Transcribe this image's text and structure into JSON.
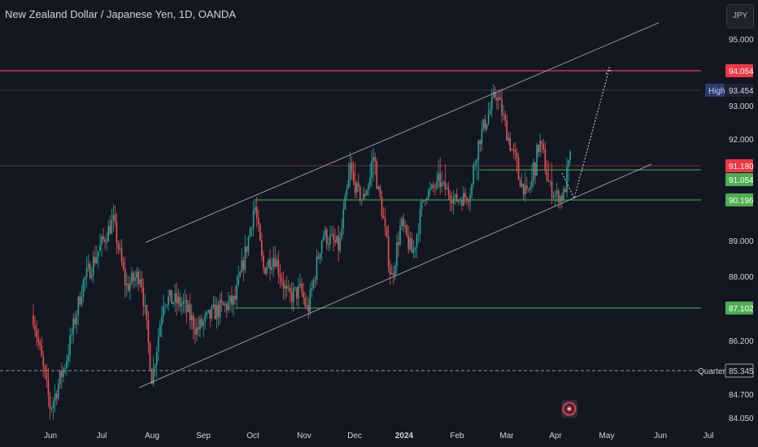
{
  "header": {
    "title": "New Zealand Dollar / Japanese Yen, 1D, OANDA"
  },
  "currency_button": {
    "label": "JPY"
  },
  "colors": {
    "background": "#131722",
    "up": "#26a69a",
    "down": "#ef5350",
    "red_level": "#f23645",
    "green_level": "#4caf50",
    "channel": "#b2b5be",
    "high_badge": "#2a3e73",
    "axis_text": "#d1d4dc"
  },
  "chart_data": {
    "type": "candlestick",
    "y_axis": {
      "ticks": [
        "95.000",
        "93.000",
        "92.000",
        "89.000",
        "88.000",
        "86.200",
        "84.700",
        "84.050"
      ]
    },
    "x_axis": {
      "labels": [
        "Jun",
        "Jul",
        "Aug",
        "Sep",
        "Oct",
        "Nov",
        "Dec",
        "2024",
        "Feb",
        "Mar",
        "Apr",
        "May",
        "Jun",
        "Jul"
      ]
    },
    "price_labels": [
      {
        "value": "94.054",
        "kind": "red"
      },
      {
        "value": "93.454",
        "kind": "high",
        "tag": "High"
      },
      {
        "value": "91.180",
        "kind": "red"
      },
      {
        "value": "91.054",
        "kind": "green"
      },
      {
        "value": "90.196",
        "kind": "green"
      },
      {
        "value": "87.102",
        "kind": "green"
      },
      {
        "value": "85.345",
        "kind": "neutral",
        "tag": "Quarter"
      }
    ],
    "annotations": {
      "horizontal_levels": [
        94.054,
        91.18,
        91.054,
        90.196,
        87.102,
        85.345
      ],
      "ascending_channel": {
        "upper": {
          "from": [
            "2023-08-01",
            88.95
          ],
          "to": [
            "2024-06-01",
            95.45
          ]
        },
        "lower": {
          "from": [
            "2023-08-01",
            84.95
          ],
          "to": [
            "2024-06-01",
            91.25
          ]
        }
      },
      "projection": [
        [
          "2024-04-12",
          90.2
        ],
        [
          "2024-05-01",
          94.05
        ]
      ]
    },
    "series_anchor_points": [
      [
        "2023-05-22",
        86.9
      ],
      [
        "2023-06-01",
        84.3
      ],
      [
        "2023-06-10",
        85.6
      ],
      [
        "2023-06-20",
        87.8
      ],
      [
        "2023-07-01",
        88.9
      ],
      [
        "2023-07-08",
        89.6
      ],
      [
        "2023-07-16",
        87.7
      ],
      [
        "2023-07-25",
        88.1
      ],
      [
        "2023-08-01",
        85.1
      ],
      [
        "2023-08-08",
        87.4
      ],
      [
        "2023-08-20",
        87.2
      ],
      [
        "2023-08-28",
        86.5
      ],
      [
        "2023-09-08",
        87.0
      ],
      [
        "2023-09-20",
        87.3
      ],
      [
        "2023-09-28",
        89.0
      ],
      [
        "2023-10-02",
        90.1
      ],
      [
        "2023-10-07",
        88.2
      ],
      [
        "2023-10-14",
        88.6
      ],
      [
        "2023-10-22",
        87.4
      ],
      [
        "2023-10-30",
        87.6
      ],
      [
        "2023-11-03",
        87.0
      ],
      [
        "2023-11-12",
        89.2
      ],
      [
        "2023-11-22",
        88.8
      ],
      [
        "2023-11-28",
        91.2
      ],
      [
        "2023-12-06",
        90.2
      ],
      [
        "2023-12-13",
        91.5
      ],
      [
        "2023-12-19",
        89.6
      ],
      [
        "2023-12-24",
        87.9
      ],
      [
        "2023-12-30",
        89.5
      ],
      [
        "2024-01-06",
        88.6
      ],
      [
        "2024-01-13",
        90.4
      ],
      [
        "2024-01-22",
        90.9
      ],
      [
        "2024-01-31",
        90.2
      ],
      [
        "2024-02-08",
        90.4
      ],
      [
        "2024-02-14",
        92.0
      ],
      [
        "2024-02-24",
        93.4
      ],
      [
        "2024-03-04",
        91.7
      ],
      [
        "2024-03-14",
        90.4
      ],
      [
        "2024-03-22",
        91.9
      ],
      [
        "2024-03-30",
        90.5
      ],
      [
        "2024-04-05",
        90.3
      ],
      [
        "2024-04-10",
        91.5
      ]
    ]
  }
}
